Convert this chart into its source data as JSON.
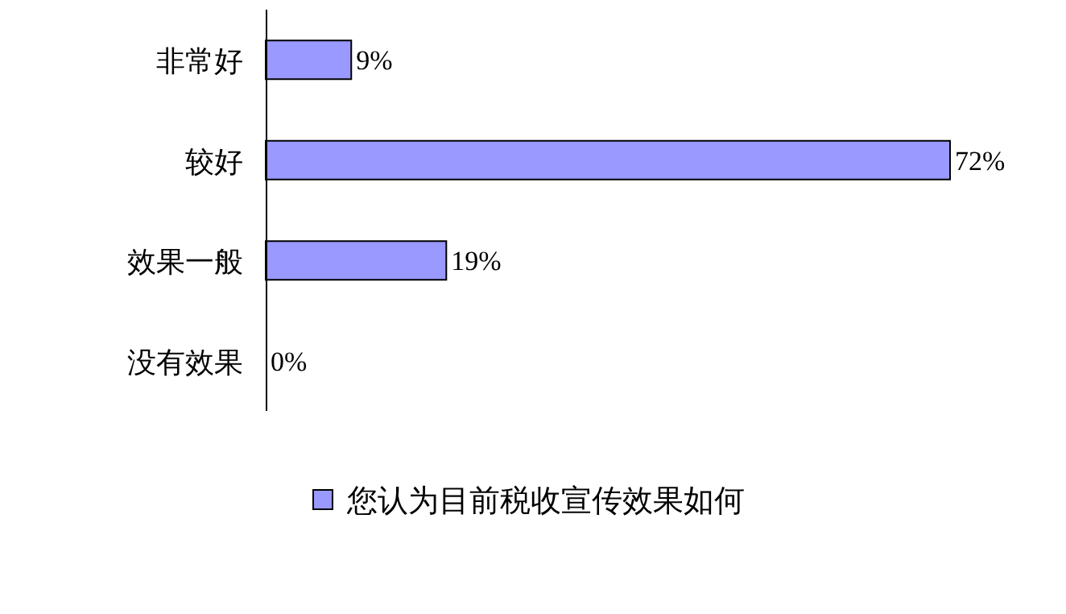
{
  "chart_data": {
    "type": "bar",
    "orientation": "horizontal",
    "categories": [
      "非常好",
      "较好",
      "效果一般",
      "没有效果"
    ],
    "series": [
      {
        "name": "您认为目前税收宣传效果如何",
        "color": "#9999ff",
        "values": [
          9,
          72,
          19,
          0
        ],
        "value_labels": [
          "9%",
          "72%",
          "19%",
          "0%"
        ]
      }
    ],
    "legend": "bottom"
  }
}
